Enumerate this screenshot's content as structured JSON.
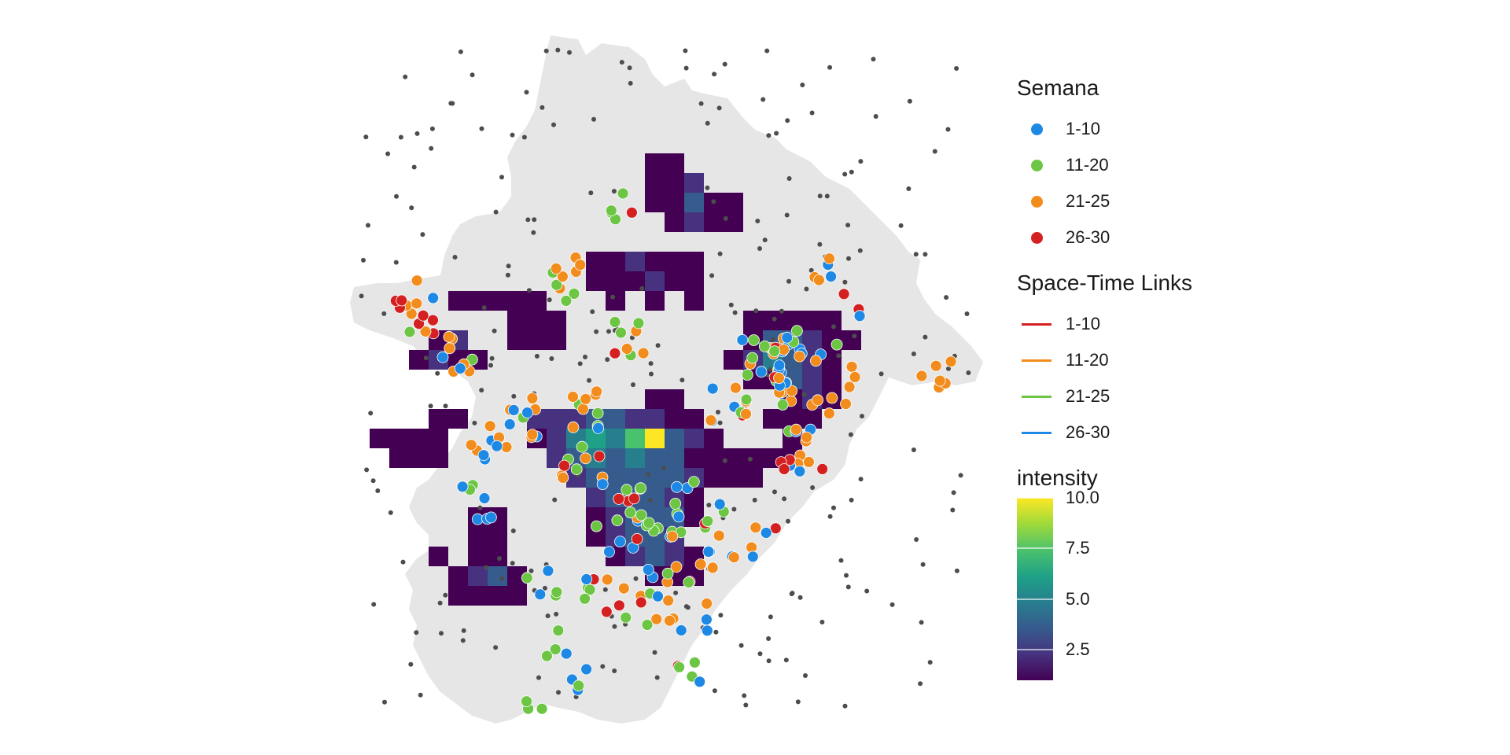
{
  "colors": {
    "city_fill": "#e6e6e6",
    "background_point": "#4d4d4d",
    "week_1_10": "#1e88e5",
    "week_11_20": "#6cc644",
    "week_21_25": "#f28c1c",
    "week_26_30": "#d42020"
  },
  "legend": {
    "semana": {
      "title": "Semana",
      "items": [
        {
          "label": "1-10",
          "color": "#1e88e5"
        },
        {
          "label": "11-20",
          "color": "#6cc644"
        },
        {
          "label": "21-25",
          "color": "#f28c1c"
        },
        {
          "label": "26-30",
          "color": "#d42020"
        }
      ]
    },
    "links": {
      "title": "Space-Time Links",
      "items": [
        {
          "label": "1-10",
          "color": "#d42020"
        },
        {
          "label": "11-20",
          "color": "#f28c1c"
        },
        {
          "label": "21-25",
          "color": "#6cc644"
        },
        {
          "label": "26-30",
          "color": "#1e88e5"
        }
      ]
    },
    "intensity": {
      "title": "intensity",
      "min": 1,
      "max": 10,
      "ticks": [
        "10.0",
        "7.5",
        "5.0",
        "2.5"
      ],
      "tick_values": [
        10,
        7.5,
        5,
        2.5
      ]
    }
  }
}
